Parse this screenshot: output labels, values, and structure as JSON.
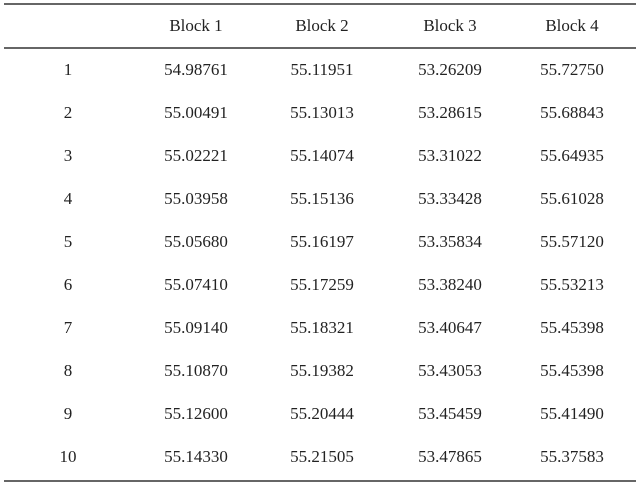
{
  "table": {
    "header": [
      "Block 1",
      "Block 2",
      "Block 3",
      "Block 4"
    ],
    "rows": [
      [
        "1",
        "54.98761",
        "55.11951",
        "53.26209",
        "55.72750"
      ],
      [
        "2",
        "55.00491",
        "55.13013",
        "53.28615",
        "55.68843"
      ],
      [
        "3",
        "55.02221",
        "55.14074",
        "53.31022",
        "55.64935"
      ],
      [
        "4",
        "55.03958",
        "55.15136",
        "53.33428",
        "55.61028"
      ],
      [
        "5",
        "55.05680",
        "55.16197",
        "53.35834",
        "55.57120"
      ],
      [
        "6",
        "55.07410",
        "55.17259",
        "53.38240",
        "55.53213"
      ],
      [
        "7",
        "55.09140",
        "55.18321",
        "53.40647",
        "55.45398"
      ],
      [
        "8",
        "55.10870",
        "55.19382",
        "53.43053",
        "55.45398"
      ],
      [
        "9",
        "55.12600",
        "55.20444",
        "53.45459",
        "55.41490"
      ],
      [
        "10",
        "55.14330",
        "55.21505",
        "53.47865",
        "55.37583"
      ]
    ]
  }
}
